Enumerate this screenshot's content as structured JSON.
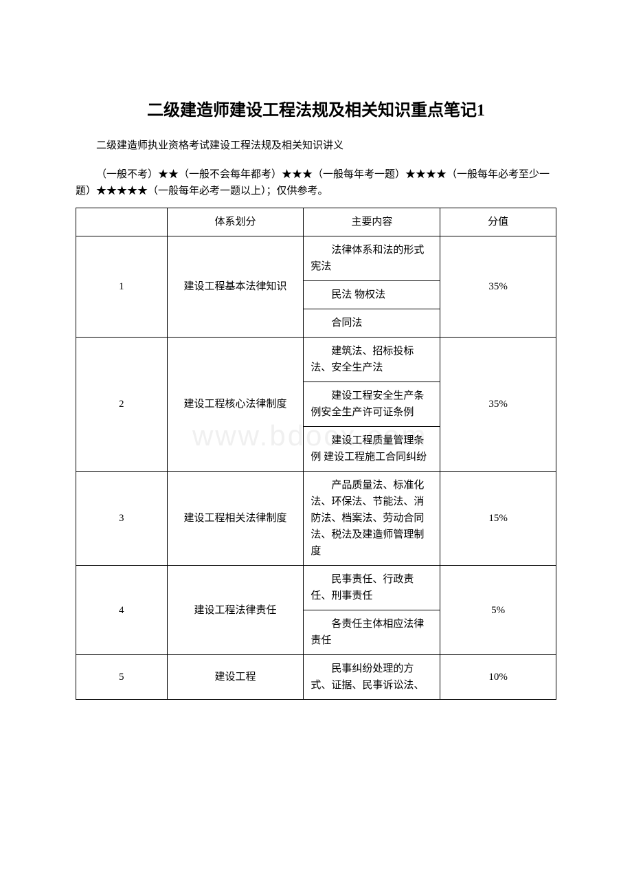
{
  "title": "二级建造师建设工程法规及相关知识重点笔记1",
  "subtitle": "二级建造师执业资格考试建设工程法规及相关知识讲义",
  "note": "（一般不考）★★（一般不会每年都考）★★★（一般每年考一题）★★★★（一般每年必考至少一题）★★★★★（一般每年必考一题以上）；仅供参考。",
  "watermark": "www.bdocx.com",
  "table": {
    "headers": {
      "col1": "",
      "col2": "体系划分",
      "col3": "主要内容",
      "col4": "分值"
    },
    "rows": [
      {
        "num": "1",
        "category": "建设工程基本法律知识",
        "contents": [
          "法律体系和法的形式 宪法",
          "民法 物权法",
          "合同法"
        ],
        "score": "35%"
      },
      {
        "num": "2",
        "category": "建设工程核心法律制度",
        "contents": [
          "建筑法、招标投标法、安全生产法",
          "建设工程安全生产条例安全生产许可证条例",
          "建设工程质量管理条例 建设工程施工合同纠纷"
        ],
        "score": "35%"
      },
      {
        "num": "3",
        "category": "建设工程相关法律制度",
        "contents": [
          "产品质量法、标准化法、环保法、节能法、消防法、档案法、劳动合同法、税法及建造师管理制度"
        ],
        "score": "15%"
      },
      {
        "num": "4",
        "category": "建设工程法律责任",
        "contents": [
          "民事责任、行政责任、刑事责任",
          "各责任主体相应法律责任"
        ],
        "score": "5%"
      },
      {
        "num": "5",
        "category": "建设工程",
        "contents": [
          "民事纠纷处理的方式、证据、民事诉讼法、"
        ],
        "score": "10%"
      }
    ]
  }
}
